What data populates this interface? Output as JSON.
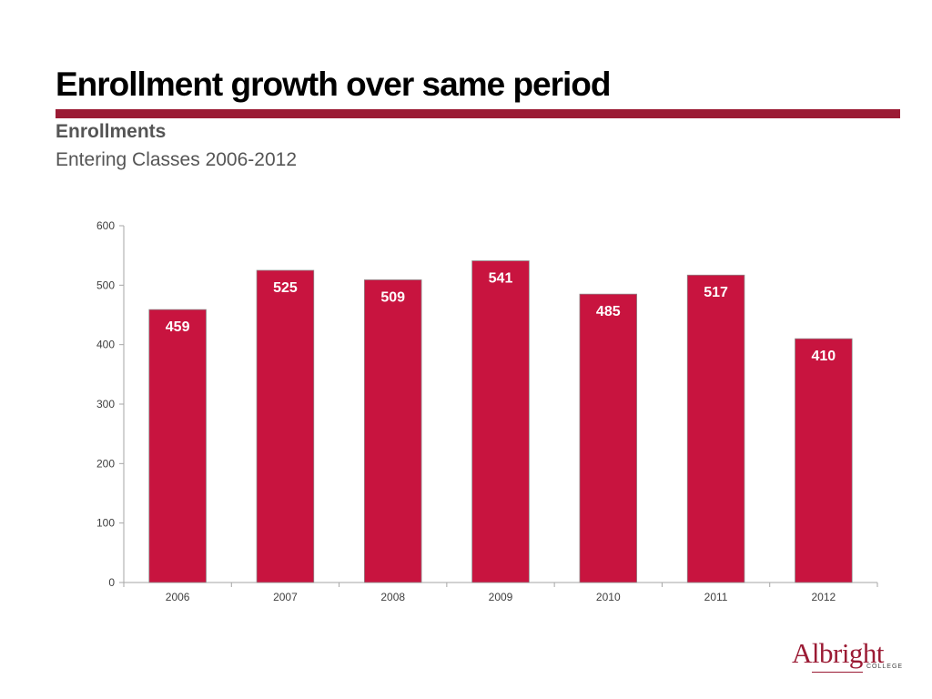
{
  "slide": {
    "title": "Enrollment growth over same period",
    "subtitle": "Enrollments",
    "subtitle2": "Entering Classes 2006-2012"
  },
  "logo": {
    "name": "Albright",
    "sub": "COLLEGE"
  },
  "colors": {
    "accent": "#9b1b34",
    "bar": "#c8143f",
    "bar_label": "#ffffff",
    "axis": "#a6a6a6",
    "tick_text": "#404040"
  },
  "chart_data": {
    "type": "bar",
    "categories": [
      "2006",
      "2007",
      "2008",
      "2009",
      "2010",
      "2011",
      "2012"
    ],
    "values": [
      459,
      525,
      509,
      541,
      485,
      517,
      410
    ],
    "ylim": [
      0,
      600
    ],
    "yticks": [
      0,
      100,
      200,
      300,
      400,
      500,
      600
    ],
    "grid": false,
    "data_labels": true
  }
}
